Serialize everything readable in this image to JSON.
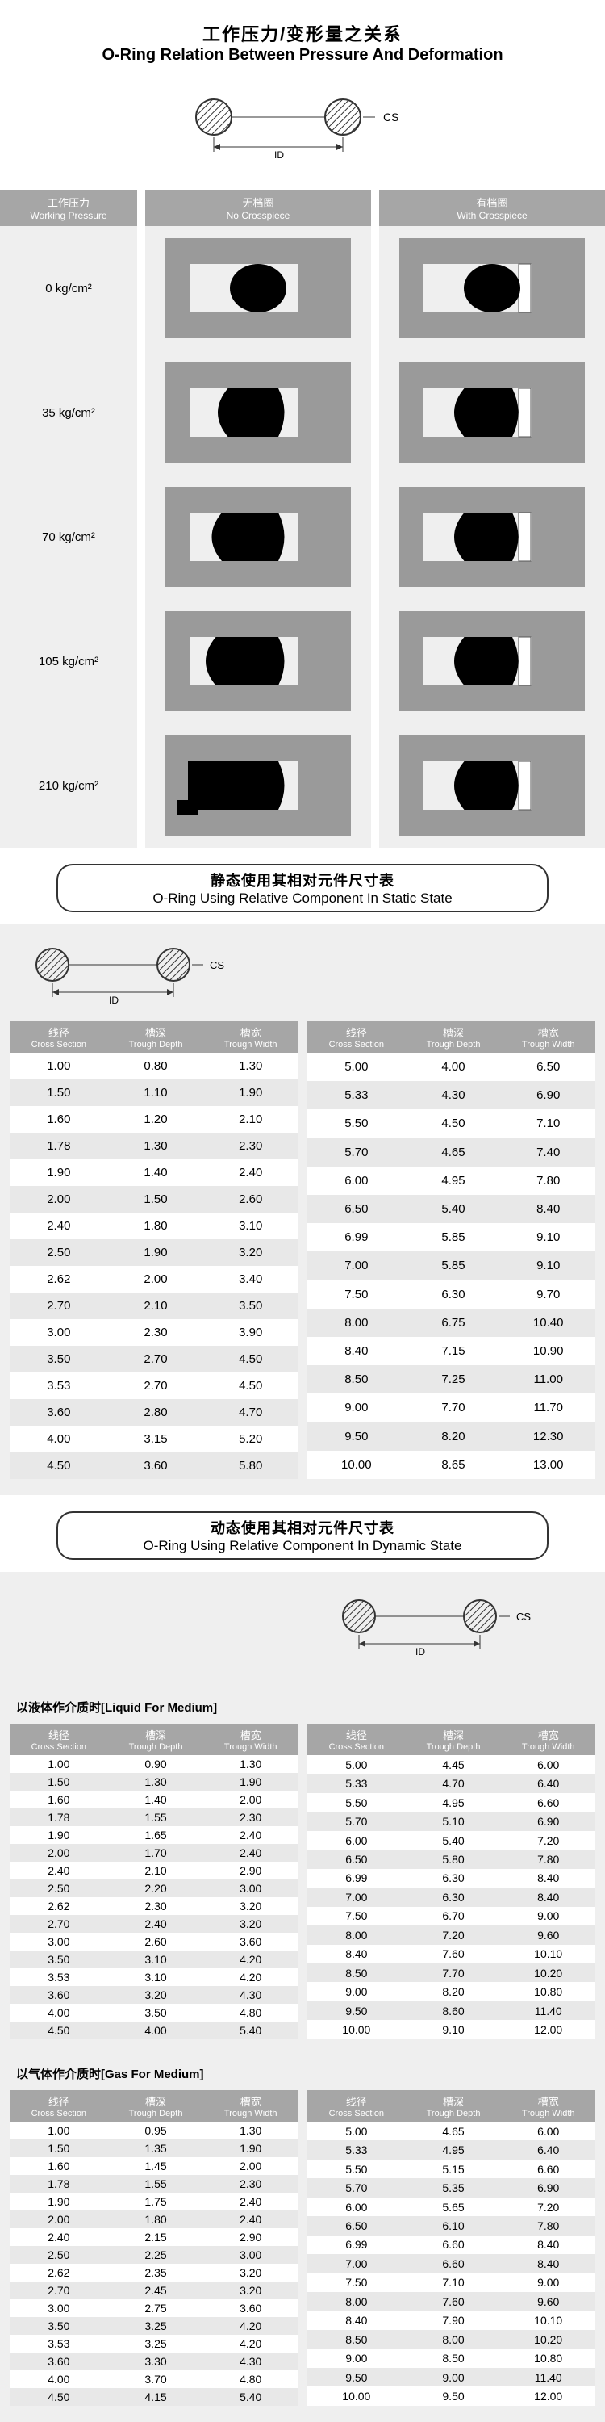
{
  "header": {
    "title_cn": "工作压力/变形量之关系",
    "title_en": "O-Ring Relation Between Pressure And Deformation"
  },
  "diagram": {
    "cs_label": "CS",
    "id_label": "ID"
  },
  "deform": {
    "cols": [
      {
        "cn": "工作压力",
        "en": "Working Pressure"
      },
      {
        "cn": "无档圈",
        "en": "No Crosspiece"
      },
      {
        "cn": "有档圈",
        "en": "With Crosspiece"
      }
    ],
    "pressures": [
      "0 kg/cm²",
      "35 kg/cm²",
      "70 kg/cm²",
      "105 kg/cm²",
      "210 kg/cm²"
    ],
    "deform_levels": [
      0,
      0.25,
      0.5,
      0.75,
      1.0
    ]
  },
  "section_static": {
    "cn": "静态使用其相对元件尺寸表",
    "en": "O-Ring Using Relative Component In Static State"
  },
  "section_dynamic": {
    "cn": "动态使用其相对元件尺寸表",
    "en": "O-Ring Using Relative Component In Dynamic State"
  },
  "table_headers": [
    {
      "cn": "线径",
      "en": "Cross Section"
    },
    {
      "cn": "槽深",
      "en": "Trough Depth"
    },
    {
      "cn": "槽宽",
      "en": "Trough Width"
    }
  ],
  "static_left": [
    [
      "1.00",
      "0.80",
      "1.30"
    ],
    [
      "1.50",
      "1.10",
      "1.90"
    ],
    [
      "1.60",
      "1.20",
      "2.10"
    ],
    [
      "1.78",
      "1.30",
      "2.30"
    ],
    [
      "1.90",
      "1.40",
      "2.40"
    ],
    [
      "2.00",
      "1.50",
      "2.60"
    ],
    [
      "2.40",
      "1.80",
      "3.10"
    ],
    [
      "2.50",
      "1.90",
      "3.20"
    ],
    [
      "2.62",
      "2.00",
      "3.40"
    ],
    [
      "2.70",
      "2.10",
      "3.50"
    ],
    [
      "3.00",
      "2.30",
      "3.90"
    ],
    [
      "3.50",
      "2.70",
      "4.50"
    ],
    [
      "3.53",
      "2.70",
      "4.50"
    ],
    [
      "3.60",
      "2.80",
      "4.70"
    ],
    [
      "4.00",
      "3.15",
      "5.20"
    ],
    [
      "4.50",
      "3.60",
      "5.80"
    ]
  ],
  "static_right": [
    [
      "5.00",
      "4.00",
      "6.50"
    ],
    [
      "5.33",
      "4.30",
      "6.90"
    ],
    [
      "5.50",
      "4.50",
      "7.10"
    ],
    [
      "5.70",
      "4.65",
      "7.40"
    ],
    [
      "6.00",
      "4.95",
      "7.80"
    ],
    [
      "6.50",
      "5.40",
      "8.40"
    ],
    [
      "6.99",
      "5.85",
      "9.10"
    ],
    [
      "7.00",
      "5.85",
      "9.10"
    ],
    [
      "7.50",
      "6.30",
      "9.70"
    ],
    [
      "8.00",
      "6.75",
      "10.40"
    ],
    [
      "8.40",
      "7.15",
      "10.90"
    ],
    [
      "8.50",
      "7.25",
      "11.00"
    ],
    [
      "9.00",
      "7.70",
      "11.70"
    ],
    [
      "9.50",
      "8.20",
      "12.30"
    ],
    [
      "10.00",
      "8.65",
      "13.00"
    ]
  ],
  "liquid_title": "以液体作介质时[Liquid For Medium]",
  "liquid_left": [
    [
      "1.00",
      "0.90",
      "1.30"
    ],
    [
      "1.50",
      "1.30",
      "1.90"
    ],
    [
      "1.60",
      "1.40",
      "2.00"
    ],
    [
      "1.78",
      "1.55",
      "2.30"
    ],
    [
      "1.90",
      "1.65",
      "2.40"
    ],
    [
      "2.00",
      "1.70",
      "2.40"
    ],
    [
      "2.40",
      "2.10",
      "2.90"
    ],
    [
      "2.50",
      "2.20",
      "3.00"
    ],
    [
      "2.62",
      "2.30",
      "3.20"
    ],
    [
      "2.70",
      "2.40",
      "3.20"
    ],
    [
      "3.00",
      "2.60",
      "3.60"
    ],
    [
      "3.50",
      "3.10",
      "4.20"
    ],
    [
      "3.53",
      "3.10",
      "4.20"
    ],
    [
      "3.60",
      "3.20",
      "4.30"
    ],
    [
      "4.00",
      "3.50",
      "4.80"
    ],
    [
      "4.50",
      "4.00",
      "5.40"
    ]
  ],
  "liquid_right": [
    [
      "5.00",
      "4.45",
      "6.00"
    ],
    [
      "5.33",
      "4.70",
      "6.40"
    ],
    [
      "5.50",
      "4.95",
      "6.60"
    ],
    [
      "5.70",
      "5.10",
      "6.90"
    ],
    [
      "6.00",
      "5.40",
      "7.20"
    ],
    [
      "6.50",
      "5.80",
      "7.80"
    ],
    [
      "6.99",
      "6.30",
      "8.40"
    ],
    [
      "7.00",
      "6.30",
      "8.40"
    ],
    [
      "7.50",
      "6.70",
      "9.00"
    ],
    [
      "8.00",
      "7.20",
      "9.60"
    ],
    [
      "8.40",
      "7.60",
      "10.10"
    ],
    [
      "8.50",
      "7.70",
      "10.20"
    ],
    [
      "9.00",
      "8.20",
      "10.80"
    ],
    [
      "9.50",
      "8.60",
      "11.40"
    ],
    [
      "10.00",
      "9.10",
      "12.00"
    ]
  ],
  "gas_title": "以气体作介质时[Gas For Medium]",
  "gas_left": [
    [
      "1.00",
      "0.95",
      "1.30"
    ],
    [
      "1.50",
      "1.35",
      "1.90"
    ],
    [
      "1.60",
      "1.45",
      "2.00"
    ],
    [
      "1.78",
      "1.55",
      "2.30"
    ],
    [
      "1.90",
      "1.75",
      "2.40"
    ],
    [
      "2.00",
      "1.80",
      "2.40"
    ],
    [
      "2.40",
      "2.15",
      "2.90"
    ],
    [
      "2.50",
      "2.25",
      "3.00"
    ],
    [
      "2.62",
      "2.35",
      "3.20"
    ],
    [
      "2.70",
      "2.45",
      "3.20"
    ],
    [
      "3.00",
      "2.75",
      "3.60"
    ],
    [
      "3.50",
      "3.25",
      "4.20"
    ],
    [
      "3.53",
      "3.25",
      "4.20"
    ],
    [
      "3.60",
      "3.30",
      "4.30"
    ],
    [
      "4.00",
      "3.70",
      "4.80"
    ],
    [
      "4.50",
      "4.15",
      "5.40"
    ]
  ],
  "gas_right": [
    [
      "5.00",
      "4.65",
      "6.00"
    ],
    [
      "5.33",
      "4.95",
      "6.40"
    ],
    [
      "5.50",
      "5.15",
      "6.60"
    ],
    [
      "5.70",
      "5.35",
      "6.90"
    ],
    [
      "6.00",
      "5.65",
      "7.20"
    ],
    [
      "6.50",
      "6.10",
      "7.80"
    ],
    [
      "6.99",
      "6.60",
      "8.40"
    ],
    [
      "7.00",
      "6.60",
      "8.40"
    ],
    [
      "7.50",
      "7.10",
      "9.00"
    ],
    [
      "8.00",
      "7.60",
      "9.60"
    ],
    [
      "8.40",
      "7.90",
      "10.10"
    ],
    [
      "8.50",
      "8.00",
      "10.20"
    ],
    [
      "9.00",
      "8.50",
      "10.80"
    ],
    [
      "9.50",
      "9.00",
      "11.40"
    ],
    [
      "10.00",
      "9.50",
      "12.00"
    ]
  ],
  "colors": {
    "header_bg": "#a6a6a6",
    "row_alt": "#e8e8e8",
    "page_bg": "#efefef",
    "shape_housing": "#9a9a9a",
    "seal": "#000"
  }
}
